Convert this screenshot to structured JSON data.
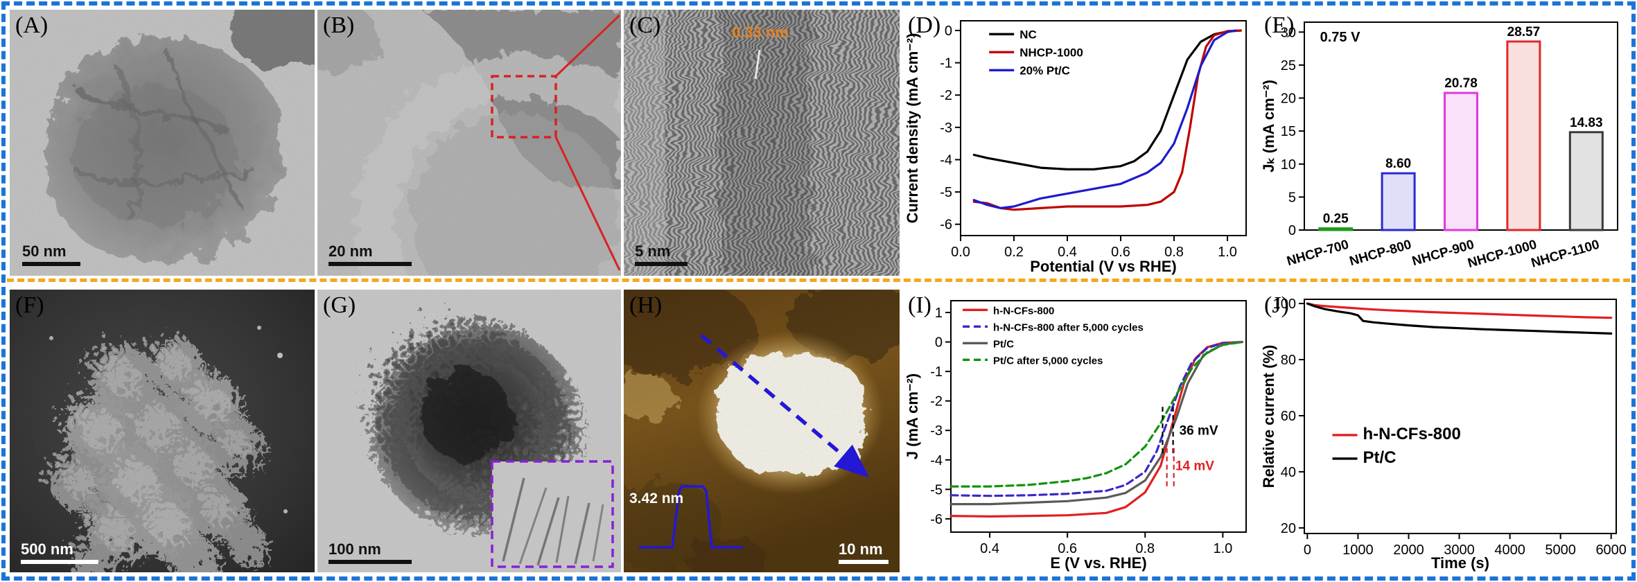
{
  "figure": {
    "border_color": "#1b74d8",
    "divider_color": "#f4a81c",
    "background": "#ffffff"
  },
  "panels": {
    "A": {
      "label": "(A)",
      "scalebar": "50 nm"
    },
    "B": {
      "label": "(B)",
      "scalebar": "20 nm"
    },
    "C": {
      "label": "(C)",
      "scalebar": "5 nm",
      "annotation": "0.33 nm"
    },
    "D": {
      "label": "(D)"
    },
    "E": {
      "label": "(E)"
    },
    "F": {
      "label": "(F)",
      "scalebar": "500 nm"
    },
    "G": {
      "label": "(G)",
      "scalebar": "100 nm"
    },
    "H": {
      "label": "(H)",
      "scalebar": "10 nm",
      "annotation": "3.42 nm"
    },
    "I": {
      "label": "(I)"
    },
    "J": {
      "label": "(J)"
    }
  },
  "chart_data": [
    {
      "id": "D",
      "type": "line",
      "xlabel": "Potential (V vs RHE)",
      "ylabel": "Current density (mA cm⁻²)",
      "xlim": [
        0,
        1.07
      ],
      "ylim": [
        -6.35,
        0.3
      ],
      "xticks": [
        0,
        0.2,
        0.4,
        0.6,
        0.8,
        1.0
      ],
      "xtick_labels": [
        "0.0",
        "0.2",
        "0.4",
        "0.6",
        "0.8",
        "1.0"
      ],
      "yticks": [
        0,
        -1,
        -2,
        -3,
        -4,
        -5,
        -6
      ],
      "legend_pos": [
        0.1,
        0.03
      ],
      "legend_font": 17,
      "legend_line_h": 26,
      "series": [
        {
          "name": "NC",
          "color": "#000000",
          "x": [
            0.05,
            0.1,
            0.2,
            0.3,
            0.4,
            0.5,
            0.6,
            0.65,
            0.7,
            0.75,
            0.8,
            0.85,
            0.9,
            0.95,
            1.0,
            1.05
          ],
          "y": [
            -3.85,
            -3.95,
            -4.1,
            -4.25,
            -4.3,
            -4.3,
            -4.2,
            -4.05,
            -3.75,
            -3.1,
            -2.0,
            -0.9,
            -0.35,
            -0.12,
            -0.03,
            0
          ]
        },
        {
          "name": "NHCP-1000",
          "color": "#c00000",
          "x": [
            0.05,
            0.1,
            0.15,
            0.2,
            0.3,
            0.4,
            0.5,
            0.6,
            0.7,
            0.75,
            0.8,
            0.83,
            0.86,
            0.89,
            0.92,
            0.95,
            1.0,
            1.05
          ],
          "y": [
            -5.3,
            -5.35,
            -5.5,
            -5.55,
            -5.5,
            -5.45,
            -5.45,
            -5.45,
            -5.4,
            -5.3,
            -5.0,
            -4.4,
            -3.0,
            -1.4,
            -0.5,
            -0.15,
            -0.02,
            0
          ]
        },
        {
          "name": "20% Pt/C",
          "color": "#1c1ccc",
          "x": [
            0.05,
            0.1,
            0.15,
            0.2,
            0.3,
            0.4,
            0.5,
            0.6,
            0.7,
            0.75,
            0.8,
            0.85,
            0.9,
            0.95,
            1.0,
            1.03
          ],
          "y": [
            -5.25,
            -5.4,
            -5.5,
            -5.45,
            -5.2,
            -5.05,
            -4.9,
            -4.75,
            -4.4,
            -4.1,
            -3.5,
            -2.4,
            -1.1,
            -0.3,
            -0.05,
            0
          ]
        }
      ]
    },
    {
      "id": "E",
      "type": "bar",
      "ylabel": "Jₖ (mA cm⁻²)",
      "categories": [
        "NHCP-700",
        "NHCP-800",
        "NHCP-900",
        "NHCP-1000",
        "NHCP-1100"
      ],
      "values": [
        0.25,
        8.6,
        20.78,
        28.57,
        14.83
      ],
      "value_labels": [
        "0.25",
        "8.60",
        "20.78",
        "28.57",
        "14.83"
      ],
      "bar_colors": [
        "#1f9a1f",
        "#2929d4",
        "#e038e0",
        "#e02828",
        "#3a3a3a"
      ],
      "ylim": [
        0,
        31.5
      ],
      "yticks": [
        0,
        5,
        10,
        15,
        20,
        25,
        30
      ],
      "annotation": {
        "text": "0.75 V",
        "fx": 0.05,
        "fy": 0.04
      }
    },
    {
      "id": "I",
      "type": "line",
      "xlabel": "E (V vs. RHE)",
      "ylabel": "J (mA cm⁻²)",
      "xlim": [
        0.3,
        1.06
      ],
      "ylim": [
        -6.45,
        1.4
      ],
      "xticks": [
        0.4,
        0.6,
        0.8,
        1.0
      ],
      "xtick_labels": [
        "0.4",
        "0.6",
        "0.8",
        "1.0"
      ],
      "yticks": [
        1,
        0,
        -1,
        -2,
        -3,
        -4,
        -5,
        -6
      ],
      "legend_pos": [
        0.04,
        0.01
      ],
      "legend_font": 15,
      "legend_line_h": 24,
      "legend_bold": true,
      "series": [
        {
          "name": "h-N-CFs-800",
          "color": "#e02020",
          "x": [
            0.3,
            0.4,
            0.5,
            0.6,
            0.7,
            0.75,
            0.8,
            0.84,
            0.87,
            0.9,
            0.93,
            0.96,
            1.0,
            1.05
          ],
          "y": [
            -5.9,
            -5.92,
            -5.9,
            -5.88,
            -5.8,
            -5.6,
            -5.1,
            -4.2,
            -2.8,
            -1.4,
            -0.55,
            -0.18,
            -0.03,
            0
          ]
        },
        {
          "name": "h-N-CFs-800 after 5,000  cycles",
          "color": "#3a28c8",
          "dash": "10 6",
          "x": [
            0.3,
            0.4,
            0.5,
            0.6,
            0.7,
            0.75,
            0.8,
            0.83,
            0.86,
            0.89,
            0.92,
            0.96,
            1.0,
            1.05
          ],
          "y": [
            -5.2,
            -5.22,
            -5.2,
            -5.15,
            -5.05,
            -4.85,
            -4.4,
            -3.7,
            -2.6,
            -1.5,
            -0.7,
            -0.2,
            -0.04,
            0
          ]
        },
        {
          "name": "Pt/C",
          "color": "#5a5a5a",
          "x": [
            0.3,
            0.4,
            0.5,
            0.6,
            0.7,
            0.75,
            0.8,
            0.84,
            0.88,
            0.91,
            0.95,
            1.0,
            1.05
          ],
          "y": [
            -5.5,
            -5.5,
            -5.45,
            -5.4,
            -5.28,
            -5.12,
            -4.7,
            -3.9,
            -2.6,
            -1.4,
            -0.45,
            -0.08,
            0
          ]
        },
        {
          "name": "Pt/C after 5,000  cycles",
          "color": "#0f930f",
          "dash": "10 6",
          "x": [
            0.3,
            0.4,
            0.5,
            0.6,
            0.65,
            0.7,
            0.75,
            0.8,
            0.84,
            0.88,
            0.92,
            0.96,
            1.0,
            1.05
          ],
          "y": [
            -4.9,
            -4.9,
            -4.85,
            -4.72,
            -4.62,
            -4.45,
            -4.15,
            -3.55,
            -2.75,
            -1.8,
            -0.9,
            -0.35,
            -0.1,
            0
          ]
        }
      ],
      "ann_lines": [
        {
          "x1": 0.845,
          "y1": -2.2,
          "x2": 0.845,
          "y2": -3.9,
          "color": "#000000"
        },
        {
          "x1": 0.872,
          "y1": -2.2,
          "x2": 0.872,
          "y2": -3.9,
          "color": "#000000"
        },
        {
          "x1": 0.856,
          "y1": -3.6,
          "x2": 0.856,
          "y2": -5.0,
          "color": "#e02020"
        },
        {
          "x1": 0.874,
          "y1": -3.6,
          "x2": 0.874,
          "y2": -5.0,
          "color": "#e02020"
        }
      ],
      "annotations": [
        {
          "text": "36 mV",
          "x": 0.888,
          "y": -3.15,
          "color": "#000000"
        },
        {
          "text": "14 mV",
          "x": 0.878,
          "y": -4.35,
          "color": "#e02020"
        }
      ]
    },
    {
      "id": "J",
      "type": "line",
      "xlabel": "Time (s)",
      "ylabel": "Relative current (%)",
      "xlim": [
        -60,
        6100
      ],
      "ylim": [
        18,
        101.5
      ],
      "xticks": [
        0,
        1000,
        2000,
        3000,
        4000,
        5000,
        6000
      ],
      "xtick_labels": [
        "0",
        "1000",
        "2000",
        "3000",
        "4000",
        "5000",
        "6000"
      ],
      "yticks": [
        20,
        40,
        60,
        80,
        100
      ],
      "legend_pos": [
        0.09,
        0.55
      ],
      "legend_font": 24,
      "legend_line_h": 34,
      "legend_bold": true,
      "series": [
        {
          "name": "h-N-CFs-800",
          "color": "#e02020",
          "x": [
            0,
            150,
            400,
            800,
            1200,
            1600,
            2000,
            2500,
            3000,
            3500,
            4000,
            4500,
            5000,
            5500,
            6000
          ],
          "y": [
            100,
            99.4,
            99.0,
            98.5,
            98.0,
            97.6,
            97.3,
            96.9,
            96.6,
            96.3,
            96.0,
            95.7,
            95.4,
            95.1,
            94.9
          ]
        },
        {
          "name": "Pt/C",
          "color": "#000000",
          "x": [
            0,
            150,
            350,
            600,
            850,
            1000,
            1100,
            1300,
            1600,
            2000,
            2500,
            3000,
            3500,
            4000,
            4500,
            5000,
            5500,
            6000
          ],
          "y": [
            100,
            99.0,
            98.0,
            97.2,
            96.5,
            95.8,
            93.8,
            93.3,
            92.8,
            92.2,
            91.6,
            91.2,
            90.8,
            90.5,
            90.2,
            89.9,
            89.6,
            89.3
          ]
        }
      ]
    }
  ]
}
